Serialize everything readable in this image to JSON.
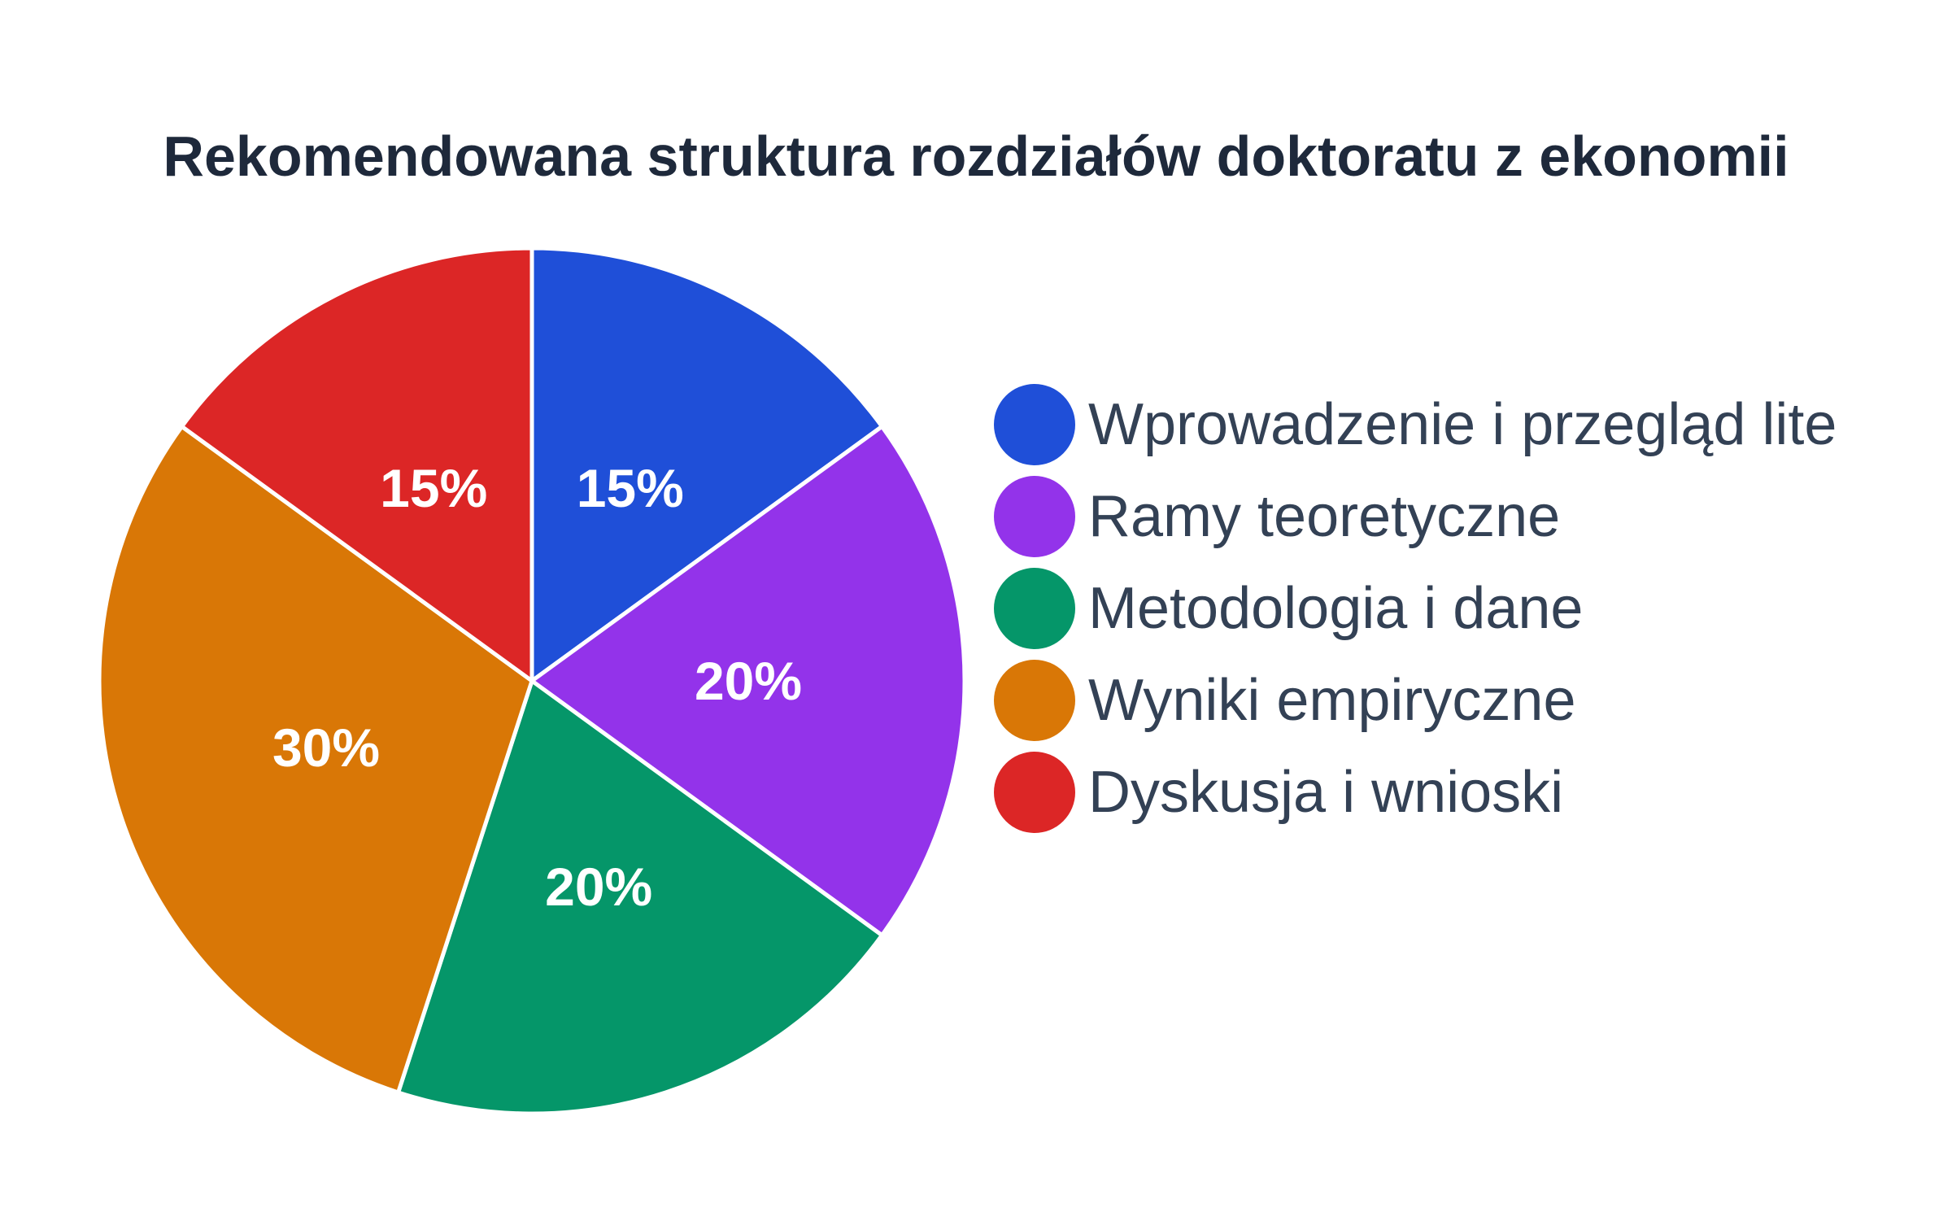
{
  "chart_data": {
    "type": "pie",
    "title": "Rekomendowana struktura rozdziałów doktoratu z ekonomii",
    "categories": [
      "Wprowadzenie i przegląd lite",
      "Ramy teoretyczne",
      "Metodologia i dane",
      "Wyniki empiryczne",
      "Dyskusja i wnioski"
    ],
    "values": [
      15,
      20,
      20,
      30,
      15
    ],
    "value_labels": [
      "15%",
      "20%",
      "20%",
      "30%",
      "15%"
    ],
    "colors": [
      "#1f4fd8",
      "#9333ea",
      "#059669",
      "#d97706",
      "#dc2626"
    ],
    "slice_border_color": "#ffffff",
    "start_angle": "12 o'clock",
    "direction": "clockwise",
    "legend_placement": "right"
  }
}
